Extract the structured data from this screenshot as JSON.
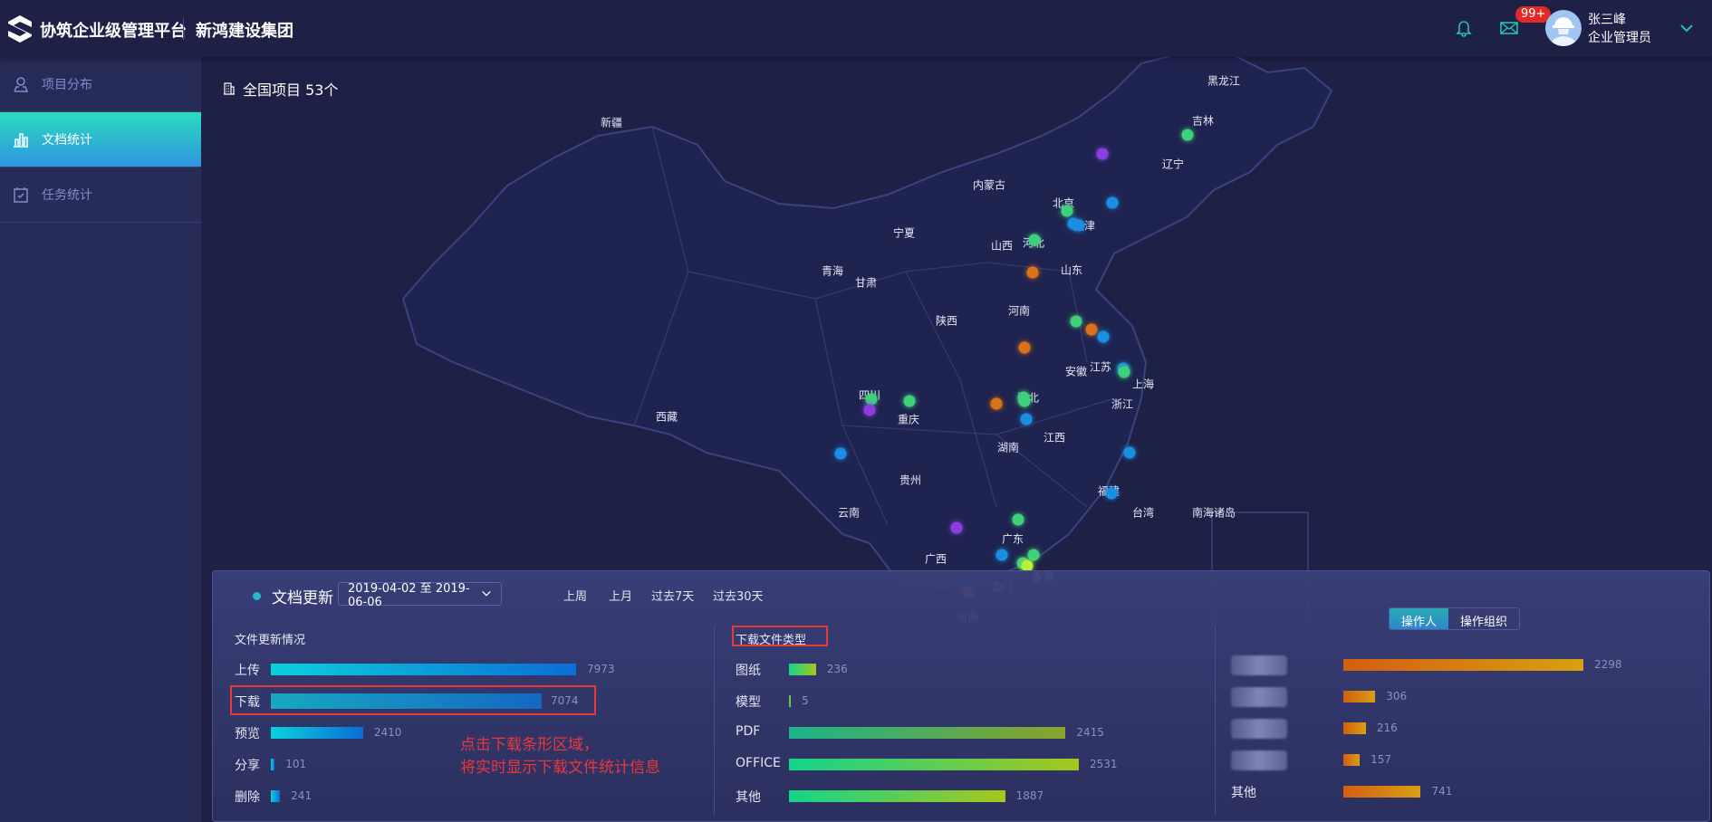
{
  "header": {
    "app_title": "协筑企业级管理平台",
    "org_name": "新鸿建设集团",
    "badge": "99+",
    "user_name": "张三峰",
    "user_role": "企业管理员",
    "icons": [
      "bell-icon",
      "mail-icon",
      "chevron-down-icon"
    ]
  },
  "sidebar": {
    "items": [
      {
        "label": "项目分布",
        "icon": "map-pin-icon",
        "active": false
      },
      {
        "label": "文档统计",
        "icon": "bar-chart-icon",
        "active": true
      },
      {
        "label": "任务统计",
        "icon": "calendar-check-icon",
        "active": false
      }
    ]
  },
  "map": {
    "title": "全国项目 53个",
    "provinces": [
      [
        "新疆",
        675,
        135
      ],
      [
        "黑龙江",
        1351,
        89
      ],
      [
        "吉林",
        1328,
        133
      ],
      [
        "辽宁",
        1295,
        181
      ],
      [
        "内蒙古",
        1092,
        204
      ],
      [
        "北京",
        1174,
        224
      ],
      [
        "天津",
        1197,
        249
      ],
      [
        "宁夏",
        998,
        257
      ],
      [
        "山西",
        1106,
        271
      ],
      [
        "河北",
        1141,
        268
      ],
      [
        "山东",
        1183,
        298
      ],
      [
        "青海",
        919,
        299
      ],
      [
        "甘肃",
        956,
        312
      ],
      [
        "陕西",
        1045,
        354
      ],
      [
        "河南",
        1125,
        343
      ],
      [
        "安徽",
        1188,
        410
      ],
      [
        "江苏",
        1215,
        405
      ],
      [
        "上海",
        1262,
        424
      ],
      [
        "四川",
        960,
        436
      ],
      [
        "湖北",
        1135,
        439
      ],
      [
        "重庆",
        1003,
        463
      ],
      [
        "浙江",
        1239,
        446
      ],
      [
        "西藏",
        736,
        460
      ],
      [
        "江西",
        1164,
        483
      ],
      [
        "湖南",
        1113,
        494
      ],
      [
        "贵州",
        1005,
        530
      ],
      [
        "福建",
        1224,
        542
      ],
      [
        "云南",
        937,
        566
      ],
      [
        "台湾",
        1262,
        566
      ],
      [
        "南海诸岛",
        1340,
        566
      ],
      [
        "广东",
        1118,
        595
      ],
      [
        "广西",
        1033,
        617
      ],
      [
        "澳门",
        1106,
        648
      ],
      [
        "香港",
        1151,
        637
      ],
      [
        "海南",
        1068,
        682
      ]
    ],
    "colors": {
      "purple": "#8a3ee0",
      "green": "#3fd07a",
      "blue": "#1a8ee0",
      "orange": "#d8731a",
      "lime": "#b6f03a"
    },
    "points": [
      [
        1217,
        170,
        "purple"
      ],
      [
        1311,
        149,
        "green"
      ],
      [
        1228,
        224,
        "blue"
      ],
      [
        1178,
        233,
        "green"
      ],
      [
        1185,
        247,
        "blue"
      ],
      [
        1191,
        249,
        "blue"
      ],
      [
        1142,
        265,
        "green"
      ],
      [
        1140,
        301,
        "orange"
      ],
      [
        1188,
        355,
        "green"
      ],
      [
        1205,
        364,
        "orange"
      ],
      [
        1218,
        372,
        "blue"
      ],
      [
        1131,
        384,
        "orange"
      ],
      [
        1240,
        407,
        "blue"
      ],
      [
        1241,
        411,
        "green"
      ],
      [
        962,
        441,
        "green"
      ],
      [
        1004,
        443,
        "green"
      ],
      [
        960,
        453,
        "purple"
      ],
      [
        1100,
        446,
        "orange"
      ],
      [
        1130,
        439,
        "green"
      ],
      [
        1131,
        443,
        "green"
      ],
      [
        1133,
        463,
        "blue"
      ],
      [
        928,
        501,
        "blue"
      ],
      [
        1247,
        500,
        "blue"
      ],
      [
        1227,
        545,
        "blue"
      ],
      [
        1124,
        574,
        "green"
      ],
      [
        1056,
        583,
        "purple"
      ],
      [
        1106,
        613,
        "blue"
      ],
      [
        1141,
        613,
        "green"
      ],
      [
        1129,
        622,
        "green"
      ],
      [
        1134,
        625,
        "lime"
      ],
      [
        1069,
        654,
        "orange"
      ]
    ]
  },
  "panel": {
    "title": "文档更新",
    "date_range": "2019-04-02 至 2019-06-06",
    "quick_links": [
      "上周",
      "上月",
      "过去7天",
      "过去30天"
    ],
    "update": {
      "title": "文件更新情况",
      "rows": [
        {
          "label": "上传",
          "value": 7973
        },
        {
          "label": "下载",
          "value": 7074
        },
        {
          "label": "预览",
          "value": 2410
        },
        {
          "label": "分享",
          "value": 101
        },
        {
          "label": "删除",
          "value": 241
        }
      ]
    },
    "annotation": [
      "点击下载条形区域，",
      "将实时显示下载文件统计信息"
    ],
    "types": {
      "title": "下载文件类型",
      "rows": [
        {
          "label": "图纸",
          "value": 236
        },
        {
          "label": "模型",
          "value": 5
        },
        {
          "label": "PDF",
          "value": 2415
        },
        {
          "label": "OFFICE",
          "value": 2531
        },
        {
          "label": "其他",
          "value": 1887
        }
      ]
    },
    "operators": {
      "tabs": [
        "操作人",
        "操作组织"
      ],
      "active_tab": "操作人",
      "rows": [
        {
          "label": "",
          "value": 2298
        },
        {
          "label": "",
          "value": 306
        },
        {
          "label": "",
          "value": 216
        },
        {
          "label": "",
          "value": 157
        },
        {
          "label": "其他",
          "value": 741
        }
      ]
    }
  }
}
